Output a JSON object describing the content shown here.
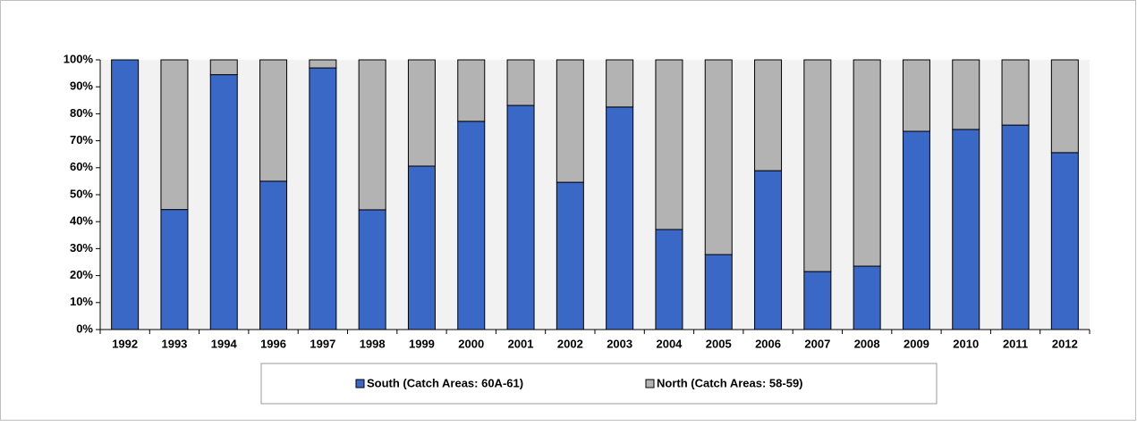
{
  "chart_data": {
    "type": "stacked-bar",
    "categories": [
      "1992",
      "1993",
      "1994",
      "1996",
      "1997",
      "1998",
      "1999",
      "2000",
      "2001",
      "2002",
      "2003",
      "2004",
      "2005",
      "2006",
      "2007",
      "2008",
      "2009",
      "2010",
      "2011",
      "2012"
    ],
    "series": [
      {
        "name": "South (Catch Areas: 60A-61)",
        "color": "#3a68c6",
        "values": [
          100,
          44.5,
          94.5,
          55,
          97,
          44.4,
          60.6,
          77.2,
          83.1,
          54.6,
          82.5,
          37.1,
          27.8,
          58.9,
          21.5,
          23.5,
          73.5,
          74.2,
          75.8,
          65.6
        ]
      },
      {
        "name": "North (Catch Areas: 58-59)",
        "color": "#b3b3b3",
        "values": [
          0,
          55.5,
          5.5,
          45,
          3,
          55.6,
          39.4,
          22.8,
          16.9,
          45.4,
          17.5,
          62.9,
          72.2,
          41.1,
          78.5,
          76.5,
          26.5,
          25.8,
          24.2,
          34.4
        ]
      }
    ],
    "ylim": [
      0,
      100
    ],
    "yticks": [
      {
        "value": 0,
        "label": "0%"
      },
      {
        "value": 10,
        "label": "10%"
      },
      {
        "value": 20,
        "label": "20%"
      },
      {
        "value": 30,
        "label": "30%"
      },
      {
        "value": 40,
        "label": "40%"
      },
      {
        "value": 50,
        "label": "50%"
      },
      {
        "value": 60,
        "label": "60%"
      },
      {
        "value": 70,
        "label": "70%"
      },
      {
        "value": 80,
        "label": "80%"
      },
      {
        "value": 90,
        "label": "90%"
      },
      {
        "value": 100,
        "label": "100%"
      }
    ],
    "grid": false,
    "legend": "bottom"
  }
}
